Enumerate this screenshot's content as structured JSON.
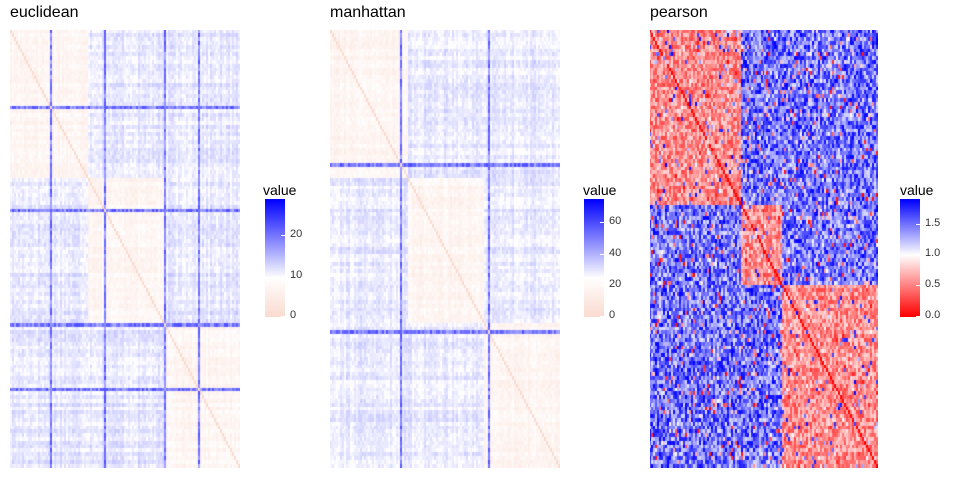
{
  "chart_data": [
    {
      "type": "heatmap",
      "title": "euclidean",
      "legend": {
        "title": "value",
        "ticks": [
          0,
          10,
          20
        ],
        "tick_labels": [
          "0",
          "10",
          "20"
        ],
        "range": [
          0,
          29
        ],
        "colors": {
          "low": "#fadbd0",
          "mid": "#ffffff",
          "high": "#0000ff"
        }
      },
      "notes": "pairwise distance matrix; mostly pale values with a few high-distance rows/columns",
      "bands": [
        0.17,
        0.41,
        0.67,
        0.82
      ]
    },
    {
      "type": "heatmap",
      "title": "manhattan",
      "legend": {
        "title": "value",
        "ticks": [
          0,
          20,
          40,
          60
        ],
        "tick_labels": [
          "0",
          "20",
          "40",
          "60"
        ],
        "range": [
          0,
          75
        ],
        "colors": {
          "low": "#fadbd0",
          "mid": "#ffffff",
          "high": "#0000ff"
        }
      },
      "bands": [
        0.3,
        0.69
      ]
    },
    {
      "type": "heatmap",
      "title": "pearson",
      "legend": {
        "title": "value",
        "ticks": [
          0.0,
          0.5,
          1.0,
          1.5
        ],
        "tick_labels": [
          "0.0",
          "0.5",
          "1.0",
          "1.5"
        ],
        "range": [
          0,
          1.9
        ],
        "colors": {
          "low": "#ff0000",
          "mid": "#ffffff",
          "high": "#0000ff"
        }
      },
      "blocks": [
        0.0,
        0.4,
        0.58,
        1.0
      ]
    }
  ]
}
